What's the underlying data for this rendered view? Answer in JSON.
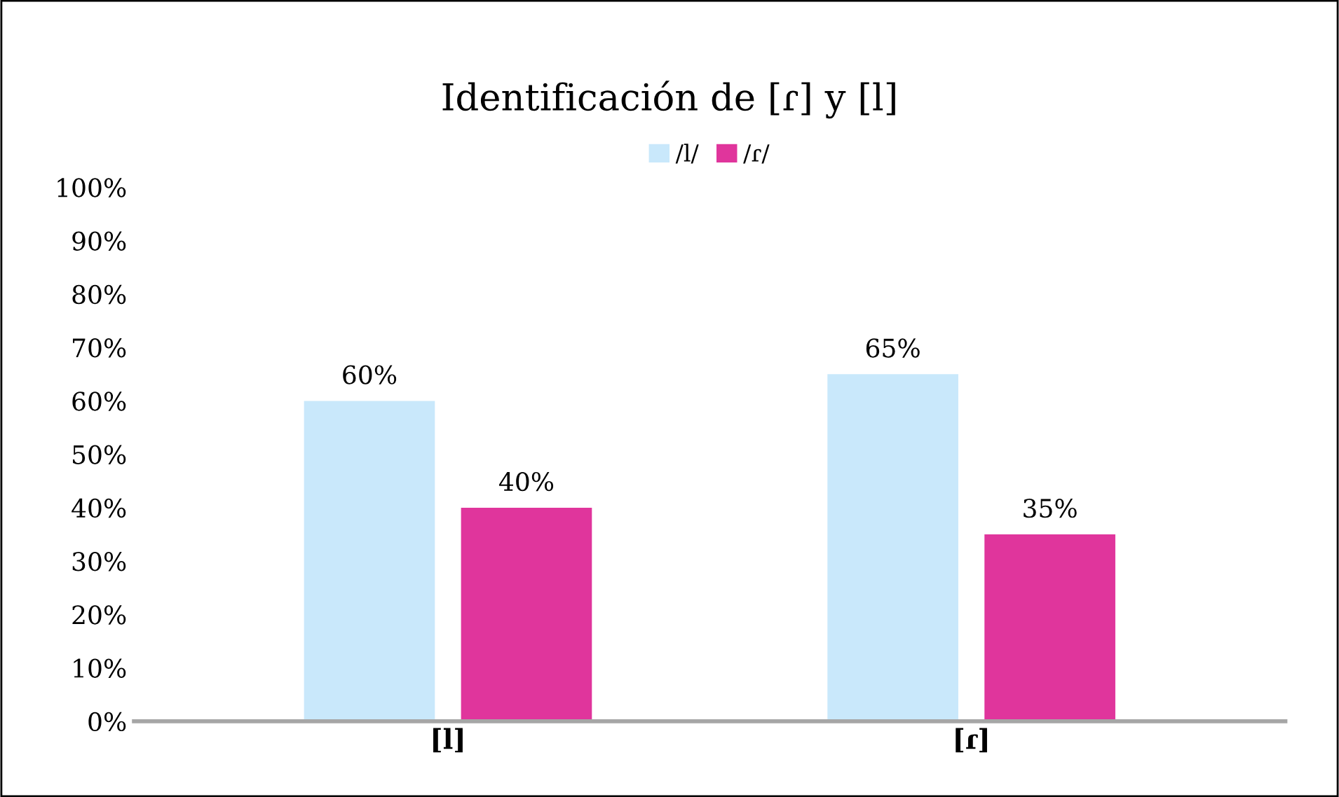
{
  "chart_data": {
    "type": "bar",
    "title": "Identificación de [ɾ] y [l]",
    "categories": [
      "[l]",
      "[ɾ]"
    ],
    "series": [
      {
        "name": "/l/",
        "color": "#c9e8fb",
        "values": [
          60,
          65
        ],
        "value_labels": [
          "60%",
          "65%"
        ]
      },
      {
        "name": "/ɾ/",
        "color": "#e0359c",
        "values": [
          40,
          35
        ],
        "value_labels": [
          "40%",
          "35%"
        ]
      }
    ],
    "ylim": [
      0,
      100
    ],
    "yticks": [
      {
        "value": 0,
        "label": "0%"
      },
      {
        "value": 10,
        "label": "10%"
      },
      {
        "value": 20,
        "label": "20%"
      },
      {
        "value": 30,
        "label": "30%"
      },
      {
        "value": 40,
        "label": "40%"
      },
      {
        "value": 50,
        "label": "50%"
      },
      {
        "value": 60,
        "label": "60%"
      },
      {
        "value": 70,
        "label": "70%"
      },
      {
        "value": 80,
        "label": "80%"
      },
      {
        "value": 90,
        "label": "90%"
      },
      {
        "value": 100,
        "label": "100%"
      }
    ],
    "grid": false,
    "legend": "top"
  }
}
